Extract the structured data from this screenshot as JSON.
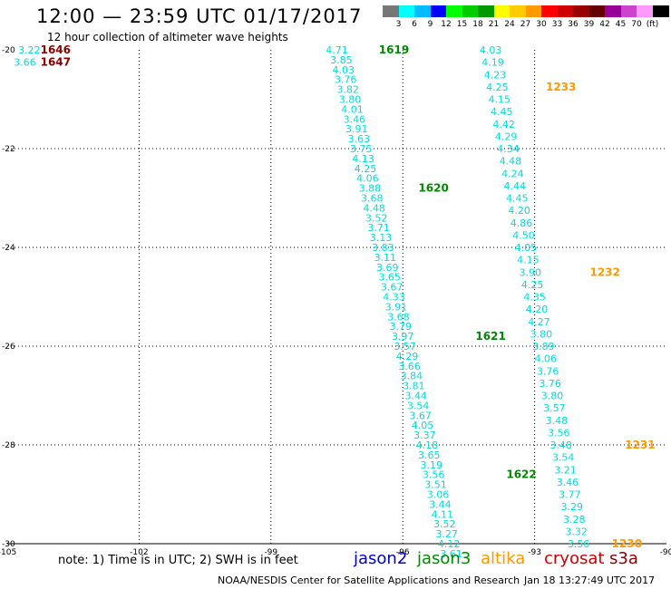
{
  "title": "12:00 — 23:59 UTC 01/17/2017",
  "subtitle": "12 hour collection of altimeter wave heights",
  "note": "note: 1) Time is in UTC; 2) SWH is in feet",
  "footer_source": "NOAA/NESDIS Center for Satellite Applications and Research",
  "footer_time": "Jan 18 13:27:49 UTC 2017",
  "satellites": [
    {
      "name": "jason2",
      "color": "#0000cc"
    },
    {
      "name": "jason3",
      "color": "#008800"
    },
    {
      "name": "altika",
      "color": "#ff9900"
    },
    {
      "name": "cryosat",
      "color": "#cc0000"
    },
    {
      "name": "s3a",
      "color": "#880000"
    }
  ],
  "color_scale": {
    "colors": [
      "#777777",
      "#00ffff",
      "#00bbff",
      "#0000ff",
      "#00ff00",
      "#00cc00",
      "#009900",
      "#ffff00",
      "#ffcc00",
      "#ff9900",
      "#ff0000",
      "#cc0000",
      "#990000",
      "#660000",
      "#990099",
      "#cc44cc",
      "#ff99ff",
      "#000000"
    ],
    "labels": [
      "3",
      "6",
      "9",
      "12",
      "15",
      "18",
      "21",
      "24",
      "27",
      "30",
      "33",
      "36",
      "39",
      "42",
      "45",
      "70",
      "(ft)"
    ]
  },
  "chart_data": {
    "type": "scatter",
    "title": "12:00 — 23:59 UTC 01/17/2017",
    "subtitle": "12 hour collection of altimeter wave heights",
    "xlim": [
      -105,
      -90
    ],
    "ylim": [
      -30,
      -20
    ],
    "x_ticks": [
      "-105",
      "-102",
      "-99",
      "-96",
      "-93",
      "-90"
    ],
    "y_ticks": [
      "-20",
      "-22",
      "-24",
      "-26",
      "-28",
      "-30"
    ],
    "grid": true,
    "series": [
      {
        "name": "jason3",
        "color": "#00dddd",
        "points": [
          {
            "x": -97.5,
            "y": -20.0,
            "v": "4.71"
          },
          {
            "x": -97.4,
            "y": -20.2,
            "v": "3.85"
          },
          {
            "x": -97.35,
            "y": -20.4,
            "v": "4.03"
          },
          {
            "x": -97.3,
            "y": -20.6,
            "v": "3.76"
          },
          {
            "x": -97.25,
            "y": -20.8,
            "v": "3.82"
          },
          {
            "x": -97.2,
            "y": -21.0,
            "v": "3.80"
          },
          {
            "x": -97.15,
            "y": -21.2,
            "v": "4.01"
          },
          {
            "x": -97.1,
            "y": -21.4,
            "v": "3.46"
          },
          {
            "x": -97.05,
            "y": -21.6,
            "v": "3.91"
          },
          {
            "x": -97.0,
            "y": -21.8,
            "v": "3.63"
          },
          {
            "x": -96.95,
            "y": -22.0,
            "v": "3.75"
          },
          {
            "x": -96.9,
            "y": -22.2,
            "v": "4.13"
          },
          {
            "x": -96.85,
            "y": -22.4,
            "v": "4.25"
          },
          {
            "x": -96.8,
            "y": -22.6,
            "v": "4.06"
          },
          {
            "x": -96.75,
            "y": -22.8,
            "v": "3.88"
          },
          {
            "x": -96.7,
            "y": -23.0,
            "v": "3.68"
          },
          {
            "x": -96.65,
            "y": -23.2,
            "v": "4.48"
          },
          {
            "x": -96.6,
            "y": -23.4,
            "v": "3.52"
          },
          {
            "x": -96.55,
            "y": -23.6,
            "v": "3.71"
          },
          {
            "x": -96.5,
            "y": -23.8,
            "v": "3.13"
          },
          {
            "x": -96.45,
            "y": -24.0,
            "v": "3.83"
          },
          {
            "x": -96.4,
            "y": -24.2,
            "v": "3.11"
          },
          {
            "x": -96.35,
            "y": -24.4,
            "v": "3.69"
          },
          {
            "x": -96.3,
            "y": -24.6,
            "v": "3.65"
          },
          {
            "x": -96.25,
            "y": -24.8,
            "v": "3.67"
          },
          {
            "x": -96.2,
            "y": -25.0,
            "v": "4.33"
          },
          {
            "x": -96.15,
            "y": -25.2,
            "v": "3.91"
          },
          {
            "x": -96.1,
            "y": -25.4,
            "v": "3.68"
          },
          {
            "x": -96.05,
            "y": -25.6,
            "v": "3.79"
          },
          {
            "x": -96.0,
            "y": -25.8,
            "v": "3.97"
          },
          {
            "x": -95.95,
            "y": -26.0,
            "v": "3.57"
          },
          {
            "x": -95.9,
            "y": -26.2,
            "v": "4.29"
          },
          {
            "x": -95.85,
            "y": -26.4,
            "v": "3.66"
          },
          {
            "x": -95.8,
            "y": -26.6,
            "v": "3.84"
          },
          {
            "x": -95.75,
            "y": -26.8,
            "v": "3.81"
          },
          {
            "x": -95.7,
            "y": -27.0,
            "v": "3.44"
          },
          {
            "x": -95.65,
            "y": -27.2,
            "v": "3.54"
          },
          {
            "x": -95.6,
            "y": -27.4,
            "v": "3.67"
          },
          {
            "x": -95.55,
            "y": -27.6,
            "v": "4.05"
          },
          {
            "x": -95.5,
            "y": -27.8,
            "v": "3.37"
          },
          {
            "x": -95.45,
            "y": -28.0,
            "v": "4.18"
          },
          {
            "x": -95.4,
            "y": -28.2,
            "v": "3.65"
          },
          {
            "x": -95.35,
            "y": -28.4,
            "v": "3.19"
          },
          {
            "x": -95.3,
            "y": -28.6,
            "v": "3.56"
          },
          {
            "x": -95.25,
            "y": -28.8,
            "v": "3.51"
          },
          {
            "x": -95.2,
            "y": -29.0,
            "v": "3.06"
          },
          {
            "x": -95.15,
            "y": -29.2,
            "v": "3.44"
          },
          {
            "x": -95.1,
            "y": -29.4,
            "v": "4.11"
          },
          {
            "x": -95.05,
            "y": -29.6,
            "v": "3.52"
          },
          {
            "x": -95.0,
            "y": -29.8,
            "v": "3.27"
          },
          {
            "x": -94.95,
            "y": -30.0,
            "v": "4.12"
          },
          {
            "x": -94.9,
            "y": -30.2,
            "v": "3.61"
          }
        ],
        "time_labels": [
          {
            "x": -96.2,
            "y": -20.0,
            "t": "1619"
          },
          {
            "x": -95.3,
            "y": -22.8,
            "t": "1620"
          },
          {
            "x": -94.0,
            "y": -25.8,
            "t": "1621"
          },
          {
            "x": -93.3,
            "y": -28.6,
            "t": "1622"
          }
        ]
      },
      {
        "name": "altika",
        "color": "#00dddd",
        "points": [
          {
            "x": -94.0,
            "y": -20.0,
            "v": "4.03"
          },
          {
            "x": -93.95,
            "y": -20.25,
            "v": "4.19"
          },
          {
            "x": -93.9,
            "y": -20.5,
            "v": "4.23"
          },
          {
            "x": -93.85,
            "y": -20.75,
            "v": "4.25"
          },
          {
            "x": -93.8,
            "y": -21.0,
            "v": "4.15"
          },
          {
            "x": -93.75,
            "y": -21.25,
            "v": "4.45"
          },
          {
            "x": -93.7,
            "y": -21.5,
            "v": "4.42"
          },
          {
            "x": -93.65,
            "y": -21.75,
            "v": "4.29"
          },
          {
            "x": -93.6,
            "y": -22.0,
            "v": "4.34"
          },
          {
            "x": -93.55,
            "y": -22.25,
            "v": "4.48"
          },
          {
            "x": -93.5,
            "y": -22.5,
            "v": "4.24"
          },
          {
            "x": -93.45,
            "y": -22.75,
            "v": "4.44"
          },
          {
            "x": -93.4,
            "y": -23.0,
            "v": "4.45"
          },
          {
            "x": -93.35,
            "y": -23.25,
            "v": "4.20"
          },
          {
            "x": -93.3,
            "y": -23.5,
            "v": "4.86"
          },
          {
            "x": -93.25,
            "y": -23.75,
            "v": "4.50"
          },
          {
            "x": -93.2,
            "y": -24.0,
            "v": "4.05"
          },
          {
            "x": -93.15,
            "y": -24.25,
            "v": "4.15"
          },
          {
            "x": -93.1,
            "y": -24.5,
            "v": "3.90"
          },
          {
            "x": -93.05,
            "y": -24.75,
            "v": "4.25"
          },
          {
            "x": -93.0,
            "y": -25.0,
            "v": "4.35"
          },
          {
            "x": -92.95,
            "y": -25.25,
            "v": "4.20"
          },
          {
            "x": -92.9,
            "y": -25.5,
            "v": "4.27"
          },
          {
            "x": -92.85,
            "y": -25.75,
            "v": "3.80"
          },
          {
            "x": -92.8,
            "y": -26.0,
            "v": "3.89"
          },
          {
            "x": -92.75,
            "y": -26.25,
            "v": "4.06"
          },
          {
            "x": -92.7,
            "y": -26.5,
            "v": "3.76"
          },
          {
            "x": -92.65,
            "y": -26.75,
            "v": "3.76"
          },
          {
            "x": -92.6,
            "y": -27.0,
            "v": "3.80"
          },
          {
            "x": -92.55,
            "y": -27.25,
            "v": "3.57"
          },
          {
            "x": -92.5,
            "y": -27.5,
            "v": "3.48"
          },
          {
            "x": -92.45,
            "y": -27.75,
            "v": "3.56"
          },
          {
            "x": -92.4,
            "y": -28.0,
            "v": "3.48"
          },
          {
            "x": -92.35,
            "y": -28.25,
            "v": "3.54"
          },
          {
            "x": -92.3,
            "y": -28.5,
            "v": "3.21"
          },
          {
            "x": -92.25,
            "y": -28.75,
            "v": "3.46"
          },
          {
            "x": -92.2,
            "y": -29.0,
            "v": "3.77"
          },
          {
            "x": -92.15,
            "y": -29.25,
            "v": "3.29"
          },
          {
            "x": -92.1,
            "y": -29.5,
            "v": "3.28"
          },
          {
            "x": -92.05,
            "y": -29.75,
            "v": "3.32"
          },
          {
            "x": -92.0,
            "y": -30.0,
            "v": "3.56"
          }
        ],
        "time_labels": [
          {
            "x": -92.4,
            "y": -20.75,
            "t": "1233"
          },
          {
            "x": -91.4,
            "y": -24.5,
            "t": "1232"
          },
          {
            "x": -90.6,
            "y": -28.0,
            "t": "1231"
          },
          {
            "x": -90.9,
            "y": -30.0,
            "t": "1230"
          }
        ]
      },
      {
        "name": "s3a",
        "color": "#00dddd",
        "points": [
          {
            "x": -104.5,
            "y": -20.0,
            "v": "3.22"
          },
          {
            "x": -104.6,
            "y": -20.25,
            "v": "3.66"
          }
        ],
        "time_labels": [
          {
            "x": -103.9,
            "y": -20.0,
            "t": "1646"
          },
          {
            "x": -103.9,
            "y": -20.25,
            "t": "1647"
          }
        ]
      }
    ]
  }
}
